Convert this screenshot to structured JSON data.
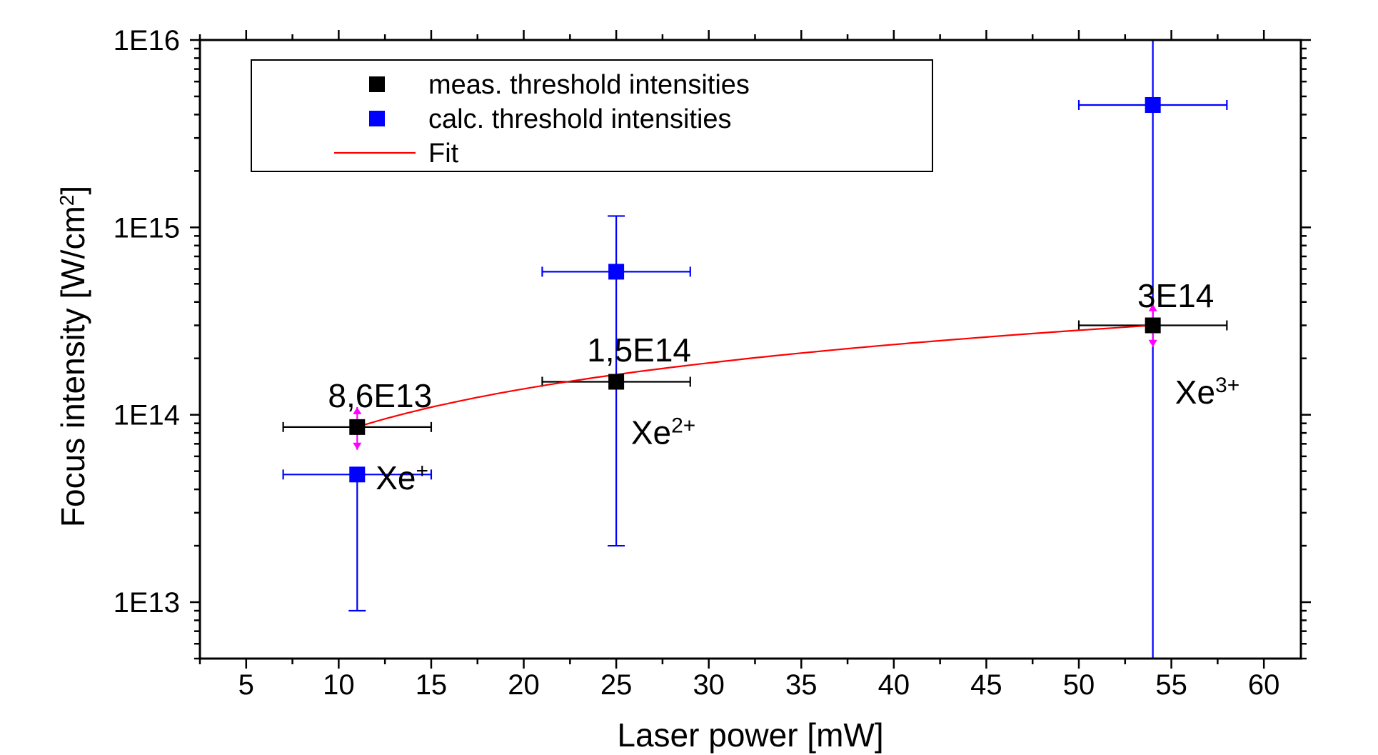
{
  "chart_data": {
    "type": "scatter",
    "xlabel": "Laser power [mW]",
    "ylabel": "Focus intensity [W/cm²]",
    "ylabel_main": "Focus intensity [W/cm",
    "ylabel_sup": "2",
    "ylabel_end": "]",
    "x_range": [
      2.5,
      62
    ],
    "y_range": [
      5000000000000.0,
      1e+16
    ],
    "y_scale": "log",
    "x_ticks": [
      5,
      10,
      15,
      20,
      25,
      30,
      35,
      40,
      45,
      50,
      55,
      60
    ],
    "x_tick_labels": [
      "5",
      "10",
      "15",
      "20",
      "25",
      "30",
      "35",
      "40",
      "45",
      "50",
      "55",
      "60"
    ],
    "y_ticks": [
      10000000000000.0,
      100000000000000.0,
      1000000000000000.0,
      1e+16
    ],
    "y_tick_labels": [
      "1E13",
      "1E14",
      "1E15",
      "1E16"
    ],
    "grid": false,
    "legend_position": "top-left",
    "legend": [
      {
        "label": "meas. threshold intensities",
        "marker": "square",
        "color": "#000000"
      },
      {
        "label": "calc. threshold intensities",
        "marker": "square",
        "color": "#0000ff"
      },
      {
        "label": "Fit",
        "marker": "line",
        "color": "#ff0000"
      }
    ],
    "series": [
      {
        "name": "meas. threshold intensities",
        "color": "#000000",
        "points": [
          {
            "x": 11,
            "y": 86000000000000.0,
            "xerr": [
              7,
              15
            ],
            "yerr": [
              65000000000000.0,
              110000000000000.0
            ]
          },
          {
            "x": 25,
            "y": 150000000000000.0,
            "xerr": [
              21,
              29
            ],
            "yerr": null
          },
          {
            "x": 54,
            "y": 300000000000000.0,
            "xerr": [
              50,
              58
            ],
            "yerr": [
              230000000000000.0,
              390000000000000.0
            ]
          }
        ]
      },
      {
        "name": "calc. threshold intensities",
        "color": "#0000ff",
        "points": [
          {
            "x": 11,
            "y": 48000000000000.0,
            "xerr": [
              7,
              15
            ],
            "yerr": [
              9000000000000.0,
              48000000000000.0
            ]
          },
          {
            "x": 25,
            "y": 580000000000000.0,
            "xerr": [
              21,
              29
            ],
            "yerr": [
              20000000000000.0,
              1150000000000000.0
            ]
          },
          {
            "x": 54,
            "y": 4500000000000000.0,
            "xerr": [
              50,
              58
            ],
            "yerr": [
              5000000000000.0,
              1e+16
            ]
          }
        ]
      },
      {
        "name": "Fit",
        "color": "#ff0000",
        "curve": "power-law",
        "x_from": 11,
        "x_to": 54
      }
    ],
    "annotations": [
      {
        "text": "8,6E13",
        "x": 11,
        "y": 120000000000000.0
      },
      {
        "text": "1,5E14",
        "x": 25,
        "y": 210000000000000.0
      },
      {
        "text": "3E14",
        "x": 54,
        "y": 410000000000000.0
      }
    ],
    "ion_labels": [
      {
        "base": "Xe",
        "sup": "+",
        "x": 12,
        "y": 40000000000000.0
      },
      {
        "base": "Xe",
        "sup": "2+",
        "x": 25.8,
        "y": 70000000000000.0
      },
      {
        "base": "Xe",
        "sup": "3+",
        "x": 55.2,
        "y": 115000000000000.0
      }
    ],
    "colors": {
      "meas": "#000000",
      "calc": "#0000ff",
      "fit": "#ff0000",
      "meas_yerr": "#ff00ff"
    }
  }
}
